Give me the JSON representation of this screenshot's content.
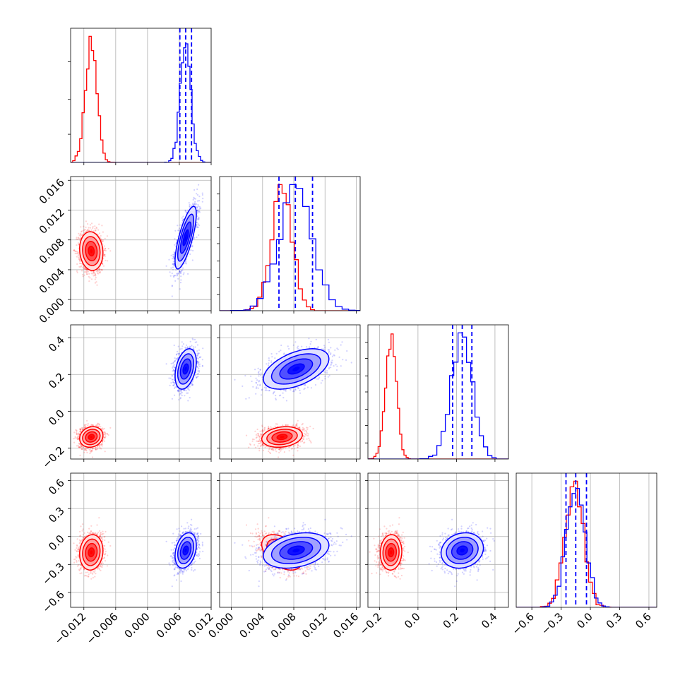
{
  "chart_data": {
    "type": "corner",
    "parameters": [
      {
        "range": [
          -0.0145,
          0.012
        ],
        "ticks": [
          "-0.012",
          "-0.006",
          "0.000",
          "0.006",
          "0.012"
        ],
        "tick_values": [
          -0.012,
          -0.006,
          0.0,
          0.006,
          0.012
        ]
      },
      {
        "range": [
          -0.0015,
          0.0165
        ],
        "ticks": [
          "0.000",
          "0.004",
          "0.008",
          "0.012",
          "0.016"
        ],
        "tick_values": [
          0.0,
          0.004,
          0.008,
          0.012,
          0.016
        ]
      },
      {
        "range": [
          -0.26,
          0.47
        ],
        "ticks": [
          "-0.2",
          "0.0",
          "0.2",
          "0.4"
        ],
        "tick_values": [
          -0.2,
          0.0,
          0.2,
          0.4
        ]
      },
      {
        "range": [
          -0.76,
          0.68
        ],
        "ticks": [
          "-0.6",
          "-0.3",
          "0.0",
          "0.3",
          "0.6"
        ],
        "tick_values": [
          -0.6,
          -0.3,
          0.0,
          0.3,
          0.6
        ]
      }
    ],
    "series": [
      {
        "color": "#ff0000",
        "means": [
          -0.0106,
          0.0065,
          -0.14,
          -0.17
        ],
        "stds": [
          0.0011,
          0.0013,
          0.028,
          0.095
        ],
        "corr": [
          [
            1,
            -0.1,
            0.15,
            0.1
          ],
          [
            -0.1,
            1,
            0.2,
            -0.45
          ],
          [
            0.15,
            0.2,
            1,
            0.05
          ],
          [
            0.1,
            -0.45,
            0.05,
            1
          ]
        ]
      },
      {
        "color": "#0000ff",
        "means": [
          0.0072,
          0.0083,
          0.23,
          -0.15
        ],
        "stds": [
          0.001,
          0.0021,
          0.055,
          0.095
        ],
        "corr": [
          [
            1,
            0.75,
            0.35,
            0.3
          ],
          [
            0.75,
            1,
            0.5,
            0.3
          ],
          [
            0.35,
            0.5,
            1,
            0.15
          ],
          [
            0.3,
            0.3,
            0.15,
            1
          ]
        ]
      }
    ],
    "quantile_lines": {
      "color": "#0000ff",
      "values": [
        [
          0.0061,
          0.0072,
          0.0083
        ],
        [
          0.0061,
          0.0082,
          0.0104
        ],
        [
          0.18,
          0.23,
          0.28
        ],
        [
          -0.25,
          -0.15,
          -0.04
        ]
      ]
    },
    "grid": true
  }
}
